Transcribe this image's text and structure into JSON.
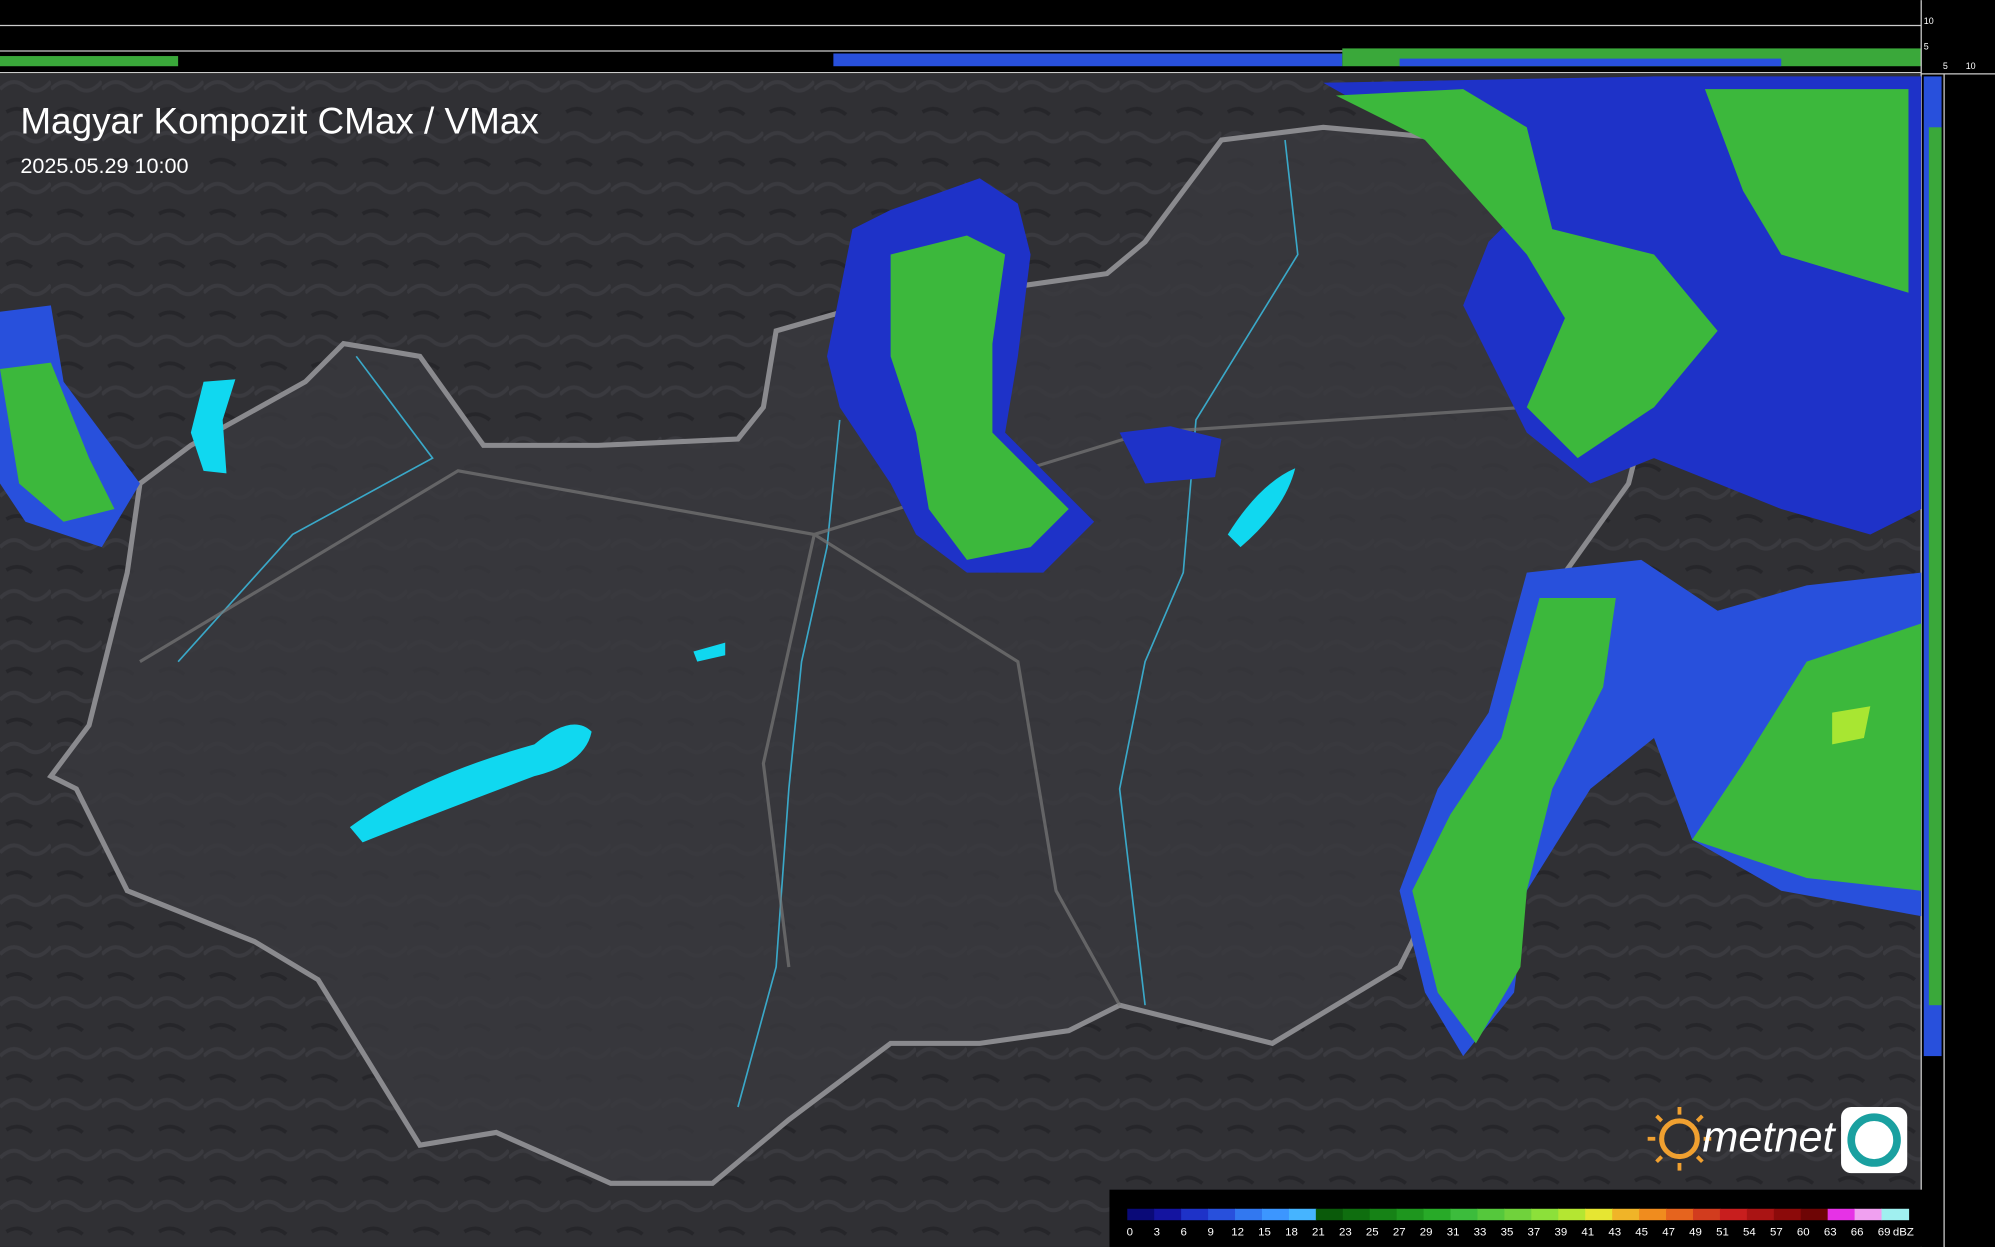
{
  "header": {
    "title": "Magyar Kompozit CMax / VMax",
    "timestamp": "2025.05.29 10:00"
  },
  "side_axis": {
    "top_labels": [
      "10",
      "5"
    ],
    "right_labels": [
      "5",
      "10"
    ]
  },
  "legend": {
    "unit": "dBZ",
    "levels": [
      0,
      3,
      6,
      9,
      12,
      15,
      18,
      21,
      23,
      25,
      27,
      29,
      31,
      33,
      35,
      37,
      39,
      41,
      43,
      45,
      47,
      49,
      51,
      54,
      57,
      60,
      63,
      66,
      69
    ],
    "colors": [
      "#0a0a78",
      "#1414a0",
      "#1e32c8",
      "#2850dc",
      "#3278f0",
      "#3c96ff",
      "#46b4ff",
      "#0a5a0a",
      "#0f6e0f",
      "#168216",
      "#1e961e",
      "#28aa28",
      "#3cbc3c",
      "#55c83c",
      "#70d23c",
      "#8ce03a",
      "#b4e632",
      "#e6e632",
      "#f0b428",
      "#f08c1e",
      "#e6641e",
      "#d23c1e",
      "#c81e1e",
      "#aa1414",
      "#8c0a0a",
      "#6e0505",
      "#e632e6",
      "#f0a0f0",
      "#a0f0f0"
    ]
  },
  "logo": {
    "text": "metnet"
  }
}
